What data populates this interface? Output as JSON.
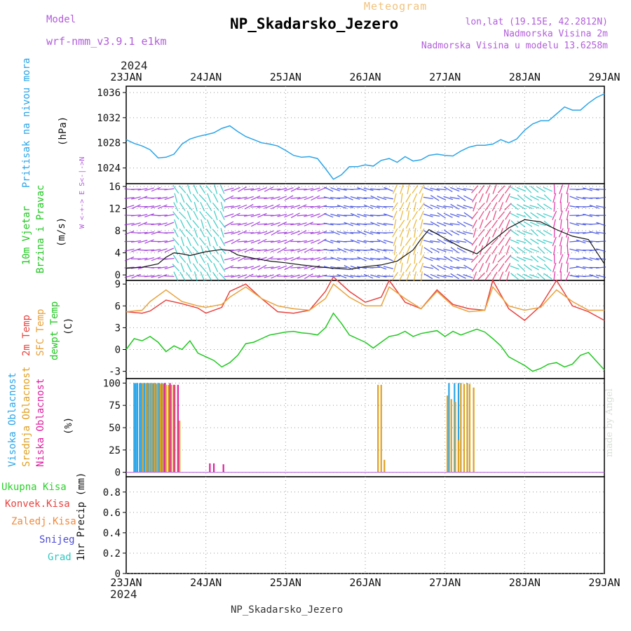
{
  "header": {
    "meteogram": "Meteogram",
    "title": "NP_Skadarsko_Jezero",
    "model_label": "Model",
    "model_name": "wrf-nmm_v3.9.1 e1km",
    "lonlat": "lon,lat (19.15E, 42.2812N)",
    "elevation": "Nadmorska Visina 2m",
    "model_elevation": "Nadmorska Visina u modelu 13.6258m"
  },
  "footer": {
    "station": "NP_Skadarsko_Jezero",
    "credit": "made by Angel"
  },
  "colors": {
    "pressure": "#2ba5e8",
    "temp2m": "#e8433f",
    "sfc": "#e8a23a",
    "dew": "#1fc81f",
    "high_cloud": "#2ba5e8",
    "mid_cloud": "#e0a020",
    "low_cloud": "#e01fa0",
    "purple": "#b25ddb",
    "grid": "#999999"
  },
  "chart_data": [
    {
      "panel": "pressure",
      "type": "line",
      "ylabel": [
        "Pritisak na nivou mora",
        "(hPa)"
      ],
      "yticks": [
        1024,
        1028,
        1032,
        1036
      ],
      "ylim": [
        1021.5,
        1037
      ],
      "x_labels": [
        "23JAN",
        "24JAN",
        "25JAN",
        "26JAN",
        "27JAN",
        "28JAN",
        "29JAN"
      ],
      "year": "2024",
      "xlim": [
        0,
        6
      ],
      "grid": true,
      "series": [
        {
          "x": [
            0,
            0.1,
            0.2,
            0.3,
            0.4,
            0.5,
            0.6,
            0.7,
            0.8,
            0.9,
            1.0,
            1.1,
            1.2,
            1.3,
            1.4,
            1.5,
            1.6,
            1.7,
            1.8,
            1.9,
            2.0,
            2.1,
            2.2,
            2.3,
            2.4,
            2.5,
            2.6,
            2.7,
            2.8,
            2.9,
            3.0,
            3.1,
            3.2,
            3.3,
            3.4,
            3.5,
            3.6,
            3.7,
            3.8,
            3.9,
            4.0,
            4.1,
            4.2,
            4.3,
            4.4,
            4.5,
            4.6,
            4.7,
            4.8,
            4.9,
            5.0,
            5.1,
            5.2,
            5.3,
            5.4,
            5.5,
            5.6,
            5.7,
            5.8,
            5.9,
            6.0
          ],
          "y": [
            1028.5,
            1027.9,
            1027.5,
            1026.9,
            1025.6,
            1025.7,
            1026.2,
            1027.8,
            1028.6,
            1029.0,
            1029.3,
            1029.6,
            1030.3,
            1030.7,
            1029.8,
            1029.0,
            1028.5,
            1028.0,
            1027.8,
            1027.5,
            1026.8,
            1026.0,
            1025.7,
            1025.8,
            1025.5,
            1023.9,
            1022.2,
            1022.9,
            1024.2,
            1024.2,
            1024.5,
            1024.3,
            1025.2,
            1025.5,
            1024.9,
            1025.8,
            1025.1,
            1025.3,
            1026.0,
            1026.2,
            1026.0,
            1025.9,
            1026.7,
            1027.3,
            1027.6,
            1027.6,
            1027.8,
            1028.5,
            1028.0,
            1028.6,
            1030.0,
            1031.0,
            1031.5,
            1031.5,
            1032.6,
            1033.7,
            1033.2,
            1033.2,
            1034.3,
            1035.2,
            1035.8
          ]
        }
      ]
    },
    {
      "panel": "wind",
      "type": "line",
      "ylabel": [
        "10m Vjetar",
        "Brzina i Pravac",
        "(m/s)"
      ],
      "compass": "W <-+-> E  S<-|->N",
      "yticks": [
        0,
        4,
        8,
        12,
        16
      ],
      "ylim": [
        -1,
        16.5
      ],
      "grid": true,
      "series": [
        {
          "name": "speed",
          "x": [
            0,
            0.2,
            0.4,
            0.5,
            0.6,
            0.7,
            0.8,
            1.0,
            1.2,
            1.3,
            1.4,
            1.6,
            1.8,
            2.0,
            2.2,
            2.4,
            2.6,
            2.8,
            3.0,
            3.2,
            3.4,
            3.6,
            3.7,
            3.8,
            4.0,
            4.2,
            4.4,
            4.6,
            4.8,
            5.0,
            5.2,
            5.4,
            5.6,
            5.8,
            6.0
          ],
          "y": [
            1.2,
            1.4,
            2.0,
            3.2,
            4.0,
            3.8,
            3.5,
            4.2,
            4.6,
            4.4,
            3.6,
            3.0,
            2.5,
            2.2,
            1.8,
            1.5,
            1.2,
            1.0,
            1.5,
            1.8,
            2.5,
            4.5,
            6.5,
            8.2,
            6.6,
            5.0,
            3.8,
            6.2,
            8.5,
            10.0,
            9.6,
            8.2,
            7.0,
            6.4,
            2.0
          ]
        }
      ]
    },
    {
      "panel": "temperature",
      "type": "line",
      "ylabel": [
        "2m Temp",
        "SFC Temp",
        "dewpt Temp",
        "(C)"
      ],
      "yticks": [
        -3,
        0,
        3,
        6,
        9
      ],
      "ylim": [
        -4,
        9.5
      ],
      "grid": true,
      "series": [
        {
          "name": "2m Temp",
          "x": [
            0,
            0.2,
            0.3,
            0.5,
            0.7,
            0.9,
            1.0,
            1.2,
            1.3,
            1.5,
            1.7,
            1.9,
            2.1,
            2.3,
            2.5,
            2.6,
            2.8,
            3.0,
            3.2,
            3.3,
            3.5,
            3.7,
            3.9,
            4.1,
            4.3,
            4.5,
            4.6,
            4.8,
            5.0,
            5.2,
            5.4,
            5.6,
            5.8,
            6.0
          ],
          "y": [
            5.2,
            5.0,
            5.3,
            6.8,
            6.3,
            5.7,
            5.0,
            5.8,
            8.0,
            9.0,
            7.0,
            5.2,
            5.0,
            5.4,
            8.0,
            10.0,
            8.0,
            6.5,
            7.2,
            9.5,
            6.5,
            5.6,
            8.2,
            6.2,
            5.6,
            5.4,
            9.5,
            5.6,
            4.0,
            6.0,
            9.5,
            6.0,
            5.2,
            4.0
          ]
        },
        {
          "name": "SFC Temp",
          "x": [
            0,
            0.2,
            0.3,
            0.5,
            0.7,
            0.9,
            1.0,
            1.2,
            1.3,
            1.5,
            1.7,
            1.9,
            2.1,
            2.3,
            2.5,
            2.6,
            2.8,
            3.0,
            3.2,
            3.3,
            3.5,
            3.7,
            3.9,
            4.1,
            4.3,
            4.5,
            4.6,
            4.8,
            5.0,
            5.2,
            5.4,
            5.6,
            5.8,
            6.0
          ],
          "y": [
            5.2,
            5.4,
            6.6,
            8.2,
            6.6,
            6.0,
            5.8,
            6.2,
            7.2,
            8.6,
            7.0,
            6.0,
            5.6,
            5.4,
            7.0,
            9.0,
            7.2,
            6.0,
            6.0,
            8.6,
            7.0,
            5.6,
            8.0,
            6.0,
            5.2,
            5.4,
            8.6,
            6.0,
            5.4,
            5.8,
            8.2,
            6.6,
            5.4,
            5.4
          ]
        },
        {
          "name": "dewpt Temp",
          "x": [
            0,
            0.1,
            0.2,
            0.3,
            0.4,
            0.5,
            0.6,
            0.7,
            0.8,
            0.9,
            1.0,
            1.1,
            1.2,
            1.3,
            1.4,
            1.5,
            1.6,
            1.7,
            1.8,
            1.9,
            2.0,
            2.1,
            2.2,
            2.3,
            2.4,
            2.5,
            2.6,
            2.7,
            2.8,
            2.9,
            3.0,
            3.1,
            3.2,
            3.3,
            3.4,
            3.5,
            3.6,
            3.7,
            3.8,
            3.9,
            4.0,
            4.1,
            4.2,
            4.3,
            4.4,
            4.5,
            4.6,
            4.7,
            4.8,
            4.9,
            5.0,
            5.1,
            5.2,
            5.3,
            5.4,
            5.5,
            5.6,
            5.7,
            5.8,
            5.9,
            6.0
          ],
          "y": [
            0.0,
            1.5,
            1.2,
            1.8,
            1.0,
            -0.3,
            0.5,
            0.0,
            1.2,
            -0.5,
            -1.0,
            -1.5,
            -2.4,
            -1.8,
            -0.8,
            0.8,
            1.0,
            1.5,
            2.0,
            2.2,
            2.4,
            2.5,
            2.3,
            2.2,
            2.0,
            3.0,
            5.0,
            3.6,
            2.0,
            1.5,
            1.0,
            0.2,
            1.0,
            1.8,
            2.0,
            2.5,
            1.8,
            2.2,
            2.4,
            2.6,
            1.8,
            2.5,
            2.0,
            2.4,
            2.8,
            2.4,
            1.5,
            0.5,
            -1.0,
            -1.6,
            -2.2,
            -3.0,
            -2.6,
            -2.0,
            -1.8,
            -2.4,
            -2.0,
            -0.8,
            -0.4,
            -1.6,
            -2.8
          ]
        }
      ]
    },
    {
      "panel": "clouds",
      "type": "bar",
      "ylabel": [
        "Visoka Oblacnost",
        "Srednja Oblacnost",
        "Niska Oblacnost",
        "(%)"
      ],
      "yticks": [
        0,
        25,
        50,
        75,
        100
      ],
      "ylim": [
        -5,
        105
      ],
      "grid": true,
      "series": [
        {
          "name": "Visoka Oblacnost",
          "x": [
            0.1,
            0.12,
            0.14,
            0.17,
            0.19,
            0.23,
            0.26,
            0.28,
            0.31,
            0.34,
            0.37,
            0.4,
            0.42,
            0.45,
            0.49,
            4.05,
            4.12,
            4.17,
            4.2,
            4.28
          ],
          "values": [
            100,
            100,
            100,
            100,
            100,
            100,
            100,
            100,
            100,
            100,
            100,
            100,
            100,
            100,
            100,
            100,
            100,
            100,
            100,
            100
          ]
        },
        {
          "name": "Srednja Oblacnost",
          "x": [
            0.21,
            0.25,
            0.29,
            0.32,
            0.36,
            0.39,
            0.43,
            0.46,
            0.5,
            0.53,
            0.57,
            0.61,
            0.67,
            3.16,
            3.2,
            3.24,
            4.03,
            4.08,
            4.13,
            4.17,
            4.2,
            4.24,
            4.28,
            4.31,
            4.36
          ],
          "values": [
            100,
            100,
            100,
            100,
            100,
            99,
            99,
            99,
            98,
            98,
            98,
            98,
            58,
            98,
            98,
            14,
            86,
            82,
            79,
            36,
            99,
            99,
            99,
            99,
            95
          ]
        },
        {
          "name": "Niska Oblacnost",
          "x": [
            0.48,
            0.55,
            0.6,
            0.65,
            1.05,
            1.1,
            1.22
          ],
          "values": [
            100,
            100,
            98,
            98,
            10,
            10,
            9
          ]
        }
      ]
    },
    {
      "panel": "precipitation",
      "type": "bar",
      "ylabel": [
        "1hr Precip (mm)"
      ],
      "legend": [
        "Ukupna Kisa",
        "Konvek.Kisa",
        "Zaledj.Kisa",
        "Snijeg",
        "Grad"
      ],
      "legend_colors": [
        "#2bd02b",
        "#e8433f",
        "#f08a3c",
        "#4a4ad8",
        "#30c8c0"
      ],
      "yticks": [
        0,
        0.2,
        0.4,
        0.6,
        0.8
      ],
      "ylim": [
        0,
        0.95
      ],
      "grid": true,
      "series": [
        {
          "name": "Ukupna Kisa",
          "values": []
        }
      ]
    }
  ]
}
